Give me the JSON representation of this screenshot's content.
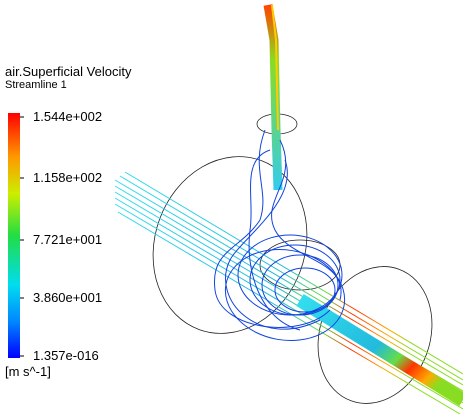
{
  "legend": {
    "title": "air.Superficial Velocity",
    "subtitle": "Streamline 1",
    "labels": [
      "1.544e+002",
      "1.158e+002",
      "7.721e+001",
      "3.860e+001",
      "1.357e-016"
    ],
    "unit": "[m s^-1]"
  }
}
